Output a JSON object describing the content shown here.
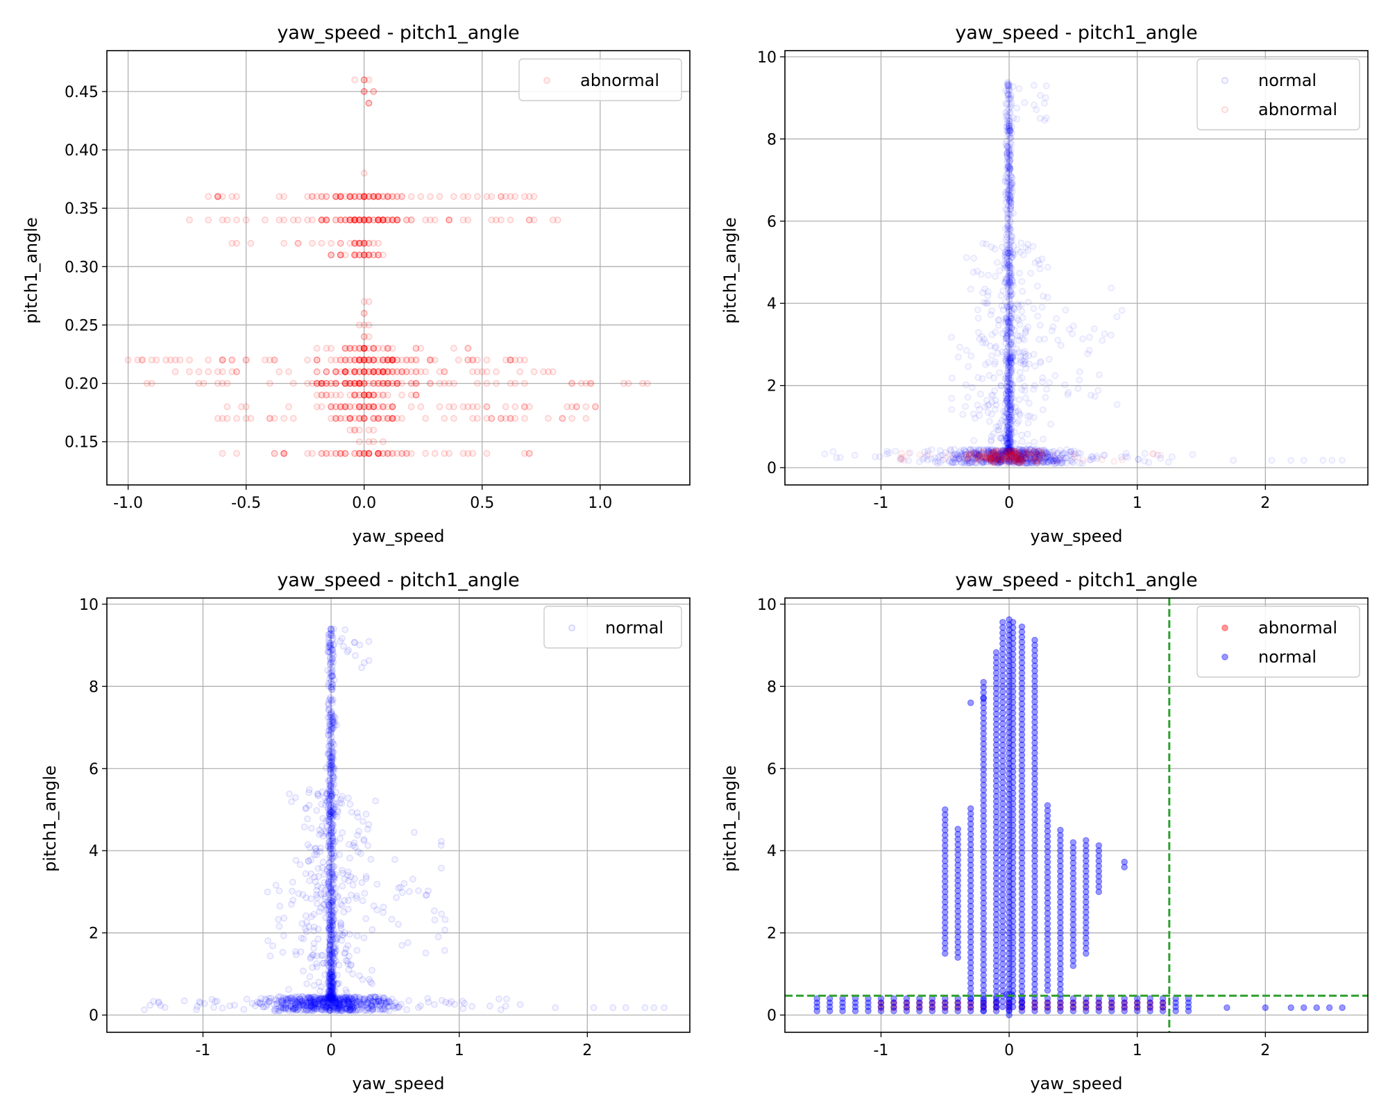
{
  "colors": {
    "normal": "#0000ff",
    "abnormal": "#ff0000",
    "threshold": "#2ca02c"
  },
  "chart_data": [
    {
      "type": "scatter",
      "title": "yaw_speed - pitch1_angle",
      "xlabel": "yaw_speed",
      "ylabel": "pitch1_angle",
      "xlim": [
        -1.09,
        1.38
      ],
      "ylim": [
        0.113,
        0.485
      ],
      "xticks": [
        -1.0,
        -0.5,
        0.0,
        0.5,
        1.0
      ],
      "xtick_labels": [
        "-1.0",
        "-0.5",
        "0.0",
        "0.5",
        "1.0"
      ],
      "yticks": [
        0.15,
        0.2,
        0.25,
        0.3,
        0.35,
        0.4,
        0.45
      ],
      "ytick_labels": [
        "0.15",
        "0.20",
        "0.25",
        "0.30",
        "0.35",
        "0.40",
        "0.45"
      ],
      "grid": true,
      "legend_position": "upper right",
      "series": [
        {
          "name": "abnormal",
          "color": "#ff0000",
          "marker": "circle-hollow",
          "alpha": 0.18,
          "generator": "abnormal_levels"
        }
      ]
    },
    {
      "type": "scatter",
      "title": "yaw_speed - pitch1_angle",
      "xlabel": "yaw_speed",
      "ylabel": "pitch1_angle",
      "xlim": [
        -1.75,
        2.8
      ],
      "ylim": [
        -0.42,
        10.15
      ],
      "xticks": [
        -1,
        0,
        1,
        2
      ],
      "xtick_labels": [
        "-1",
        "0",
        "1",
        "2"
      ],
      "yticks": [
        0,
        2,
        4,
        6,
        8,
        10
      ],
      "ytick_labels": [
        "0",
        "2",
        "4",
        "6",
        "8",
        "10"
      ],
      "grid": true,
      "legend_position": "upper right",
      "series": [
        {
          "name": "normal",
          "color": "#0000ff",
          "marker": "circle-hollow",
          "alpha": 0.09,
          "generator": "normal_cloud"
        },
        {
          "name": "abnormal",
          "color": "#ff0000",
          "marker": "circle-hollow",
          "alpha": 0.09,
          "generator": "abnormal_band"
        }
      ]
    },
    {
      "type": "scatter",
      "title": "yaw_speed - pitch1_angle",
      "xlabel": "yaw_speed",
      "ylabel": "pitch1_angle",
      "xlim": [
        -1.75,
        2.8
      ],
      "ylim": [
        -0.42,
        10.15
      ],
      "xticks": [
        -1,
        0,
        1,
        2
      ],
      "xtick_labels": [
        "-1",
        "0",
        "1",
        "2"
      ],
      "yticks": [
        0,
        2,
        4,
        6,
        8,
        10
      ],
      "ytick_labels": [
        "0",
        "2",
        "4",
        "6",
        "8",
        "10"
      ],
      "grid": true,
      "legend_position": "upper right",
      "series": [
        {
          "name": "normal",
          "color": "#0000ff",
          "marker": "circle-hollow",
          "alpha": 0.12,
          "generator": "normal_cloud"
        }
      ]
    },
    {
      "type": "scatter",
      "title": "yaw_speed - pitch1_angle",
      "xlabel": "yaw_speed",
      "ylabel": "pitch1_angle",
      "xlim": [
        -1.75,
        2.8
      ],
      "ylim": [
        -0.42,
        10.15
      ],
      "xticks": [
        -1,
        0,
        1,
        2
      ],
      "xtick_labels": [
        "-1",
        "0",
        "1",
        "2"
      ],
      "yticks": [
        0,
        2,
        4,
        6,
        8,
        10
      ],
      "ytick_labels": [
        "0",
        "2",
        "4",
        "6",
        "8",
        "10"
      ],
      "grid": true,
      "legend_position": "upper right",
      "series": [
        {
          "name": "abnormal",
          "color": "#ff0000",
          "marker": "circle",
          "alpha": 0.4,
          "generator": "abnormal_binned"
        },
        {
          "name": "normal",
          "color": "#0000ff",
          "marker": "circle",
          "alpha": 0.4,
          "generator": "normal_binned"
        }
      ],
      "threshold_lines": [
        {
          "axis": "x",
          "value": 1.25,
          "style": "dashed",
          "color": "#2ca02c"
        },
        {
          "axis": "y",
          "value": 0.47,
          "style": "dashed",
          "color": "#2ca02c"
        }
      ]
    }
  ]
}
